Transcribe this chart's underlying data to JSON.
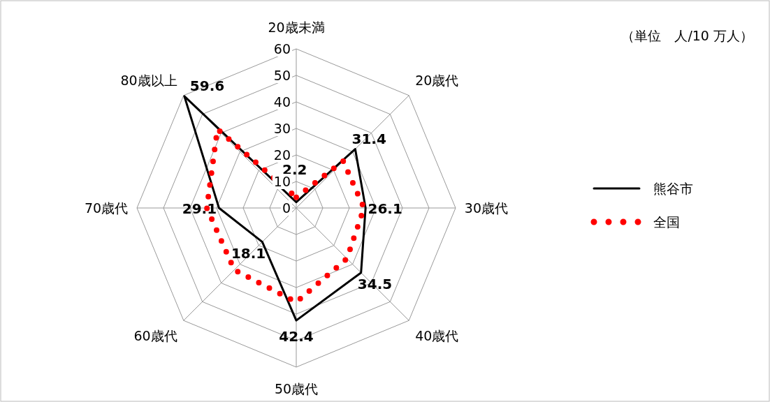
{
  "chart_data": {
    "type": "radar",
    "categories": [
      "20歳未満",
      "20歳代",
      "30歳代",
      "40歳代",
      "50歳代",
      "60歳代",
      "70歳代",
      "80歳以上"
    ],
    "ylim": [
      0,
      60
    ],
    "yticks": [
      0,
      10,
      20,
      30,
      40,
      50,
      60
    ],
    "legend": "right",
    "grid": true,
    "annotations": [
      "（単位　人/10 万人）"
    ],
    "series": [
      {
        "name": "熊谷市",
        "color": "#000000",
        "line_style": "solid",
        "values": [
          2.2,
          31.4,
          26.1,
          34.5,
          42.4,
          18.1,
          29.1,
          59.6
        ],
        "value_labels": [
          "2.2",
          "31.4",
          "26.1",
          "34.5",
          "42.4",
          "18.1",
          "29.1",
          "59.6"
        ]
      },
      {
        "name": "全国",
        "color": "#ff0000",
        "line_style": "dotted",
        "values": [
          4,
          25,
          25.5,
          27,
          35.5,
          33,
          33.7,
          42
        ]
      }
    ]
  }
}
